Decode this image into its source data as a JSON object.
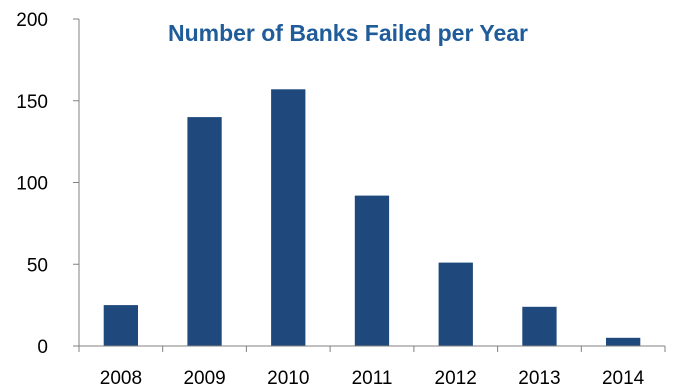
{
  "chart_data": {
    "type": "bar",
    "title": "Number of Banks Failed per Year",
    "categories": [
      "2008",
      "2009",
      "2010",
      "2011",
      "2012",
      "2013",
      "2014"
    ],
    "values": [
      25,
      140,
      157,
      92,
      51,
      24,
      5
    ],
    "ylim": [
      0,
      200
    ],
    "yticks": [
      0,
      50,
      100,
      150,
      200
    ],
    "xlabel": "",
    "ylabel": "",
    "grid": false,
    "legend": "none"
  },
  "colors": {
    "bar": "#1F497D",
    "title": "#1F5C99",
    "axis": "#808080",
    "text": "#000000"
  }
}
